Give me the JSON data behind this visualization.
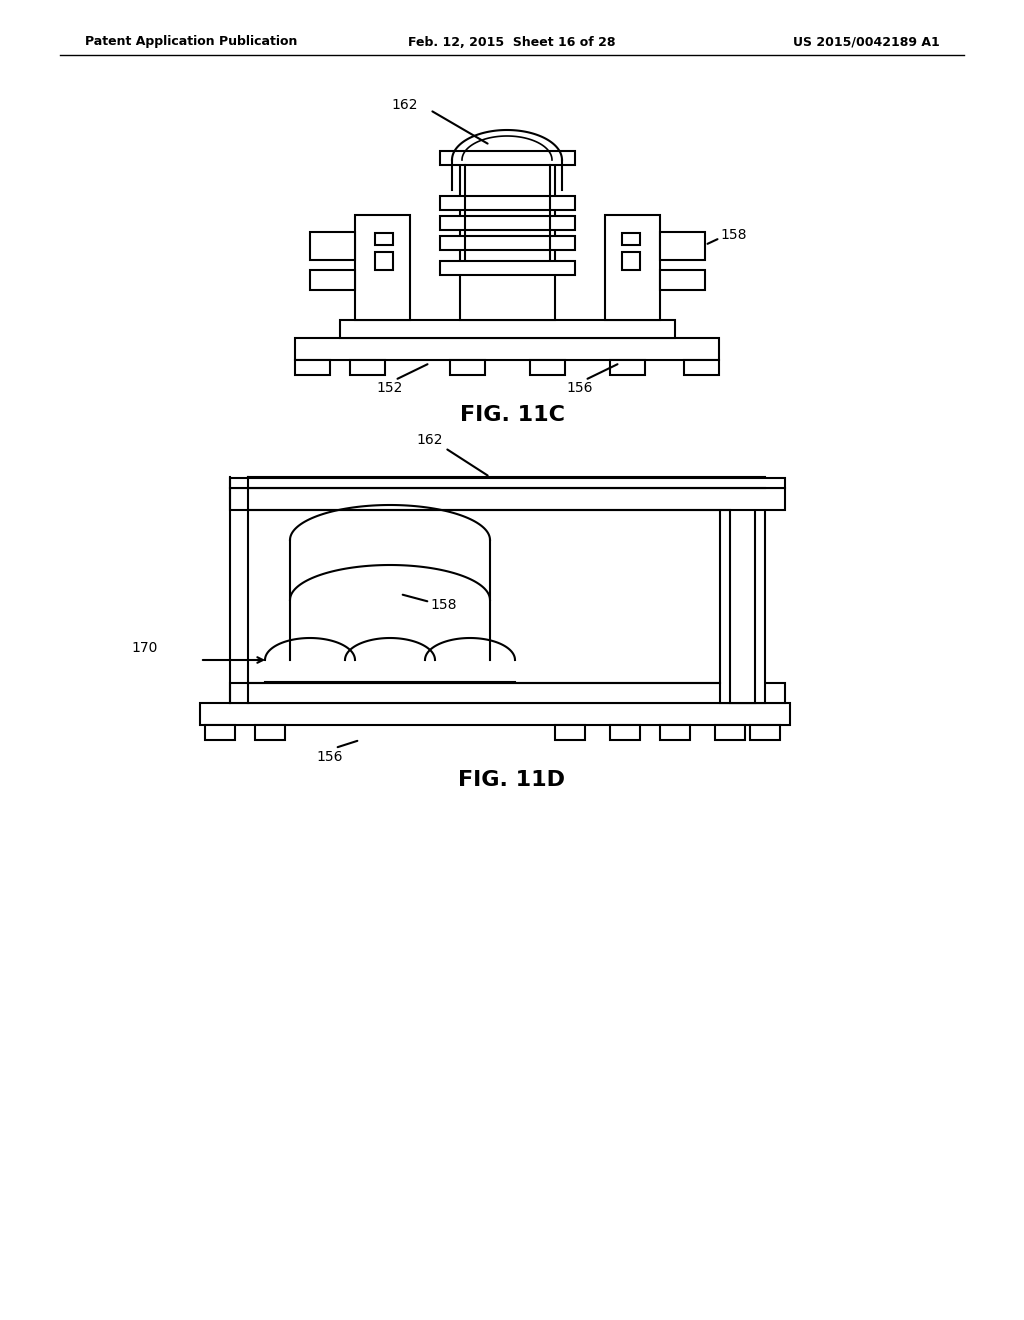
{
  "background_color": "#ffffff",
  "header_left": "Patent Application Publication",
  "header_mid": "Feb. 12, 2015  Sheet 16 of 28",
  "header_right": "US 2015/0042189 A1",
  "fig1_label": "FIG. 11C",
  "fig2_label": "FIG. 11D",
  "line_color": "#000000",
  "line_width": 1.5
}
